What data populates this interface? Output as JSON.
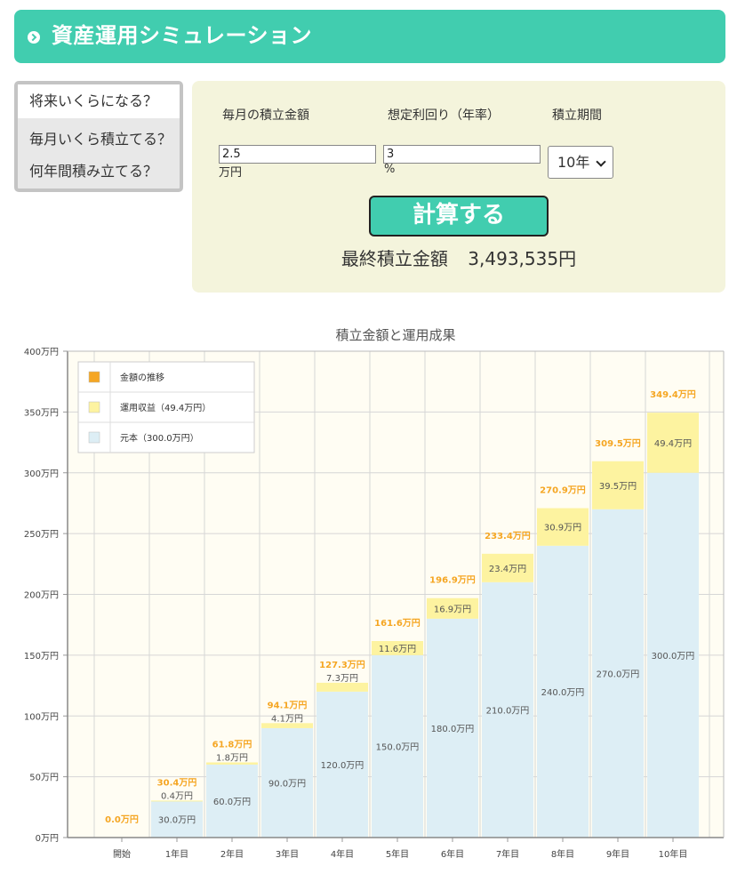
{
  "header": {
    "title": "資産運用シミュレーション"
  },
  "modes": [
    "将来いくらになる？",
    "毎月いくら積立てる？",
    "何年間積み立てる？"
  ],
  "form": {
    "monthly_label": "毎月の積立金額",
    "rate_label": "想定利回り（年率）",
    "period_label": "積立期間",
    "monthly_value": "2.5",
    "monthly_unit": "万円",
    "rate_value": "3",
    "rate_unit": "%",
    "period_value": "10年",
    "calc_button": "計算する",
    "result_label": "最終積立金額",
    "result_value": "3,493,535円"
  },
  "colors": {
    "accent": "#41cdaf",
    "total": "#f5a623",
    "gain": "#fdf3a0",
    "principal": "#ddeef5"
  },
  "chart_data": {
    "type": "bar",
    "title": "積立金額と運用成果",
    "categories": [
      "開始",
      "1年目",
      "2年目",
      "3年目",
      "4年目",
      "5年目",
      "6年目",
      "7年目",
      "8年目",
      "9年目",
      "10年目"
    ],
    "ylim": [
      0,
      400
    ],
    "yticks": [
      0,
      50,
      100,
      150,
      200,
      250,
      300,
      350,
      400
    ],
    "ytick_labels": [
      "0万円",
      "50万円",
      "100万円",
      "150万円",
      "200万円",
      "250万円",
      "300万円",
      "350万円",
      "400万円"
    ],
    "series": [
      {
        "name": "元本（300.0万円）",
        "values": [
          0,
          30,
          60,
          90,
          120,
          150,
          180,
          210,
          240,
          270,
          300
        ],
        "labels": [
          "",
          "30.0万円",
          "60.0万円",
          "90.0万円",
          "120.0万円",
          "150.0万円",
          "180.0万円",
          "210.0万円",
          "240.0万円",
          "270.0万円",
          "300.0万円"
        ]
      },
      {
        "name": "運用収益（49.4万円）",
        "values": [
          0,
          0.4,
          1.8,
          4.1,
          7.3,
          11.6,
          16.9,
          23.4,
          30.9,
          39.5,
          49.4
        ],
        "labels": [
          "",
          "0.4万円",
          "1.8万円",
          "4.1万円",
          "7.3万円",
          "11.6万円",
          "16.9万円",
          "23.4万円",
          "30.9万円",
          "39.5万円",
          "49.4万円"
        ]
      },
      {
        "name": "金額の推移",
        "values": [
          0,
          30.4,
          61.8,
          94.1,
          127.3,
          161.6,
          196.9,
          233.4,
          270.9,
          309.5,
          349.4
        ],
        "labels": [
          "0.0万円",
          "30.4万円",
          "61.8万円",
          "94.1万円",
          "127.3万円",
          "161.6万円",
          "196.9万円",
          "233.4万円",
          "270.9万円",
          "309.5万円",
          "349.4万円"
        ]
      }
    ],
    "legend": [
      "金額の推移",
      "運用収益（49.4万円）",
      "元本（300.0万円）"
    ],
    "legend_position": "top-left",
    "grid": true
  }
}
